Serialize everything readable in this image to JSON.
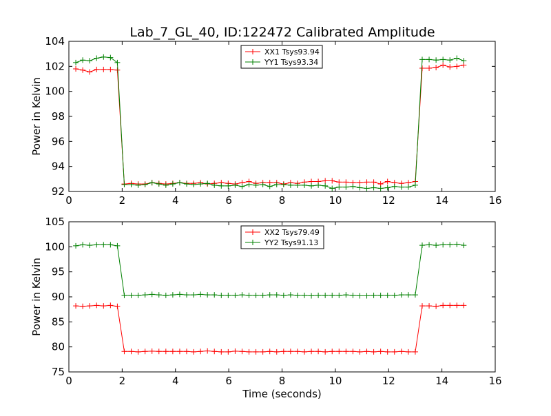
{
  "figure_title": "Lab_7_GL_40, ID:122472 Calibrated Amplitude",
  "colors": {
    "red": "#ff0000",
    "green": "#008000"
  },
  "chart_data": [
    {
      "type": "line",
      "title": "Lab_7_GL_40, ID:122472 Calibrated Amplitude",
      "xlabel": "",
      "ylabel": "Power in Kelvin",
      "xlim": [
        0,
        16
      ],
      "ylim": [
        92,
        104
      ],
      "xticks": [
        0,
        2,
        4,
        6,
        8,
        10,
        12,
        14,
        16
      ],
      "yticks": [
        92,
        94,
        96,
        98,
        100,
        102,
        104
      ],
      "grid": false,
      "legend_position": "top-center",
      "series": [
        {
          "name": "XX1 Tsys93.94",
          "color": "#ff0000",
          "x": [
            0.26,
            0.52,
            0.78,
            1.04,
            1.3,
            1.56,
            1.82,
            2.08,
            2.34,
            2.6,
            2.86,
            3.12,
            3.38,
            3.64,
            3.9,
            4.16,
            4.42,
            4.68,
            4.94,
            5.2,
            5.46,
            5.72,
            5.98,
            6.24,
            6.5,
            6.76,
            7.02,
            7.28,
            7.54,
            7.8,
            8.06,
            8.32,
            8.58,
            8.84,
            9.1,
            9.36,
            9.62,
            9.88,
            10.14,
            10.4,
            10.66,
            10.92,
            11.18,
            11.44,
            11.7,
            11.96,
            12.22,
            12.48,
            12.74,
            13.0,
            13.26,
            13.52,
            13.78,
            14.04,
            14.3,
            14.56,
            14.82
          ],
          "y": [
            101.8,
            101.7,
            101.55,
            101.75,
            101.75,
            101.75,
            101.7,
            92.6,
            92.65,
            92.6,
            92.6,
            92.7,
            92.65,
            92.6,
            92.65,
            92.7,
            92.65,
            92.65,
            92.7,
            92.6,
            92.65,
            92.7,
            92.65,
            92.6,
            92.7,
            92.8,
            92.65,
            92.7,
            92.7,
            92.7,
            92.6,
            92.7,
            92.65,
            92.75,
            92.8,
            92.8,
            92.85,
            92.85,
            92.75,
            92.75,
            92.7,
            92.7,
            92.75,
            92.75,
            92.6,
            92.8,
            92.7,
            92.65,
            92.7,
            92.8,
            101.85,
            101.85,
            101.9,
            102.1,
            101.95,
            102.0,
            102.1
          ]
        },
        {
          "name": "YY1 Tsys93.34",
          "color": "#008000",
          "x": [
            0.26,
            0.52,
            0.78,
            1.04,
            1.3,
            1.56,
            1.82,
            2.08,
            2.34,
            2.6,
            2.86,
            3.12,
            3.38,
            3.64,
            3.9,
            4.16,
            4.42,
            4.68,
            4.94,
            5.2,
            5.46,
            5.72,
            5.98,
            6.24,
            6.5,
            6.76,
            7.02,
            7.28,
            7.54,
            7.8,
            8.06,
            8.32,
            8.58,
            8.84,
            9.1,
            9.36,
            9.62,
            9.88,
            10.14,
            10.4,
            10.66,
            10.92,
            11.18,
            11.44,
            11.7,
            11.96,
            12.22,
            12.48,
            12.74,
            13.0,
            13.26,
            13.52,
            13.78,
            14.04,
            14.3,
            14.56,
            14.82
          ],
          "y": [
            102.3,
            102.5,
            102.45,
            102.65,
            102.75,
            102.7,
            102.3,
            92.55,
            92.55,
            92.5,
            92.55,
            92.7,
            92.6,
            92.5,
            92.6,
            92.7,
            92.6,
            92.55,
            92.6,
            92.65,
            92.5,
            92.45,
            92.45,
            92.5,
            92.4,
            92.55,
            92.5,
            92.55,
            92.4,
            92.55,
            92.55,
            92.5,
            92.5,
            92.5,
            92.45,
            92.5,
            92.45,
            92.25,
            92.35,
            92.35,
            92.4,
            92.3,
            92.25,
            92.3,
            92.25,
            92.3,
            92.4,
            92.35,
            92.35,
            92.5,
            102.55,
            102.55,
            102.5,
            102.55,
            102.5,
            102.65,
            102.45
          ]
        }
      ]
    },
    {
      "type": "line",
      "title": "",
      "xlabel": "Time (seconds)",
      "ylabel": "Power in Kelvin",
      "xlim": [
        0,
        16
      ],
      "ylim": [
        75,
        105
      ],
      "xticks": [
        0,
        2,
        4,
        6,
        8,
        10,
        12,
        14,
        16
      ],
      "yticks": [
        75,
        80,
        85,
        90,
        95,
        100,
        105
      ],
      "grid": false,
      "legend_position": "top-center",
      "series": [
        {
          "name": "XX2 Tsys79.49",
          "color": "#ff0000",
          "x": [
            0.26,
            0.52,
            0.78,
            1.04,
            1.3,
            1.56,
            1.82,
            2.08,
            2.34,
            2.6,
            2.86,
            3.12,
            3.38,
            3.64,
            3.9,
            4.16,
            4.42,
            4.68,
            4.94,
            5.2,
            5.46,
            5.72,
            5.98,
            6.24,
            6.5,
            6.76,
            7.02,
            7.28,
            7.54,
            7.8,
            8.06,
            8.32,
            8.58,
            8.84,
            9.1,
            9.36,
            9.62,
            9.88,
            10.14,
            10.4,
            10.66,
            10.92,
            11.18,
            11.44,
            11.7,
            11.96,
            12.22,
            12.48,
            12.74,
            13.0,
            13.26,
            13.52,
            13.78,
            14.04,
            14.3,
            14.56,
            14.82
          ],
          "y": [
            88.2,
            88.1,
            88.2,
            88.3,
            88.2,
            88.3,
            88.1,
            79.1,
            79.1,
            79.0,
            79.1,
            79.15,
            79.1,
            79.1,
            79.1,
            79.1,
            79.1,
            79.0,
            79.1,
            79.2,
            79.1,
            79.0,
            79.0,
            79.15,
            79.1,
            79.0,
            79.0,
            79.0,
            79.1,
            79.0,
            79.1,
            79.1,
            79.1,
            79.0,
            79.1,
            79.1,
            79.0,
            79.1,
            79.1,
            79.1,
            79.1,
            79.0,
            79.1,
            79.0,
            79.1,
            79.0,
            79.0,
            79.1,
            79.0,
            79.0,
            88.2,
            88.2,
            88.1,
            88.3,
            88.3,
            88.3,
            88.3
          ]
        },
        {
          "name": "YY2 Tsys91.13",
          "color": "#008000",
          "x": [
            0.26,
            0.52,
            0.78,
            1.04,
            1.3,
            1.56,
            1.82,
            2.08,
            2.34,
            2.6,
            2.86,
            3.12,
            3.38,
            3.64,
            3.9,
            4.16,
            4.42,
            4.68,
            4.94,
            5.2,
            5.46,
            5.72,
            5.98,
            6.24,
            6.5,
            6.76,
            7.02,
            7.28,
            7.54,
            7.8,
            8.06,
            8.32,
            8.58,
            8.84,
            9.1,
            9.36,
            9.62,
            9.88,
            10.14,
            10.4,
            10.66,
            10.92,
            11.18,
            11.44,
            11.7,
            11.96,
            12.22,
            12.48,
            12.74,
            13.0,
            13.26,
            13.52,
            13.78,
            14.04,
            14.3,
            14.56,
            14.82
          ],
          "y": [
            100.2,
            100.4,
            100.3,
            100.4,
            100.4,
            100.4,
            100.2,
            90.3,
            90.3,
            90.3,
            90.4,
            90.5,
            90.4,
            90.3,
            90.4,
            90.5,
            90.4,
            90.4,
            90.5,
            90.4,
            90.4,
            90.3,
            90.3,
            90.3,
            90.4,
            90.3,
            90.3,
            90.3,
            90.4,
            90.4,
            90.3,
            90.4,
            90.3,
            90.3,
            90.2,
            90.3,
            90.3,
            90.3,
            90.3,
            90.4,
            90.3,
            90.2,
            90.2,
            90.3,
            90.3,
            90.3,
            90.3,
            90.4,
            90.4,
            90.4,
            100.3,
            100.4,
            100.3,
            100.4,
            100.4,
            100.5,
            100.3
          ]
        }
      ]
    }
  ]
}
